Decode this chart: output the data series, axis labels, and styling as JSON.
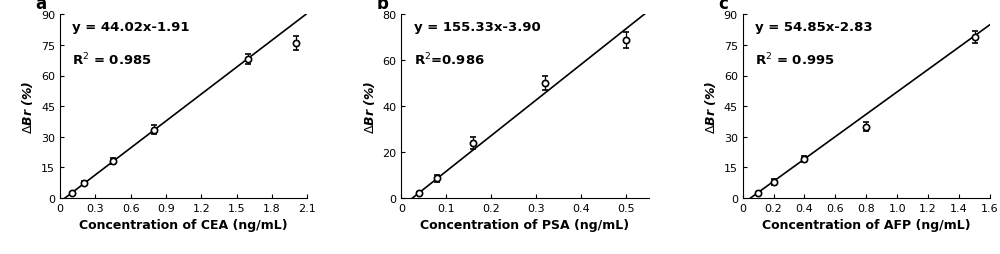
{
  "panels": [
    {
      "label": "a",
      "equation": "y = 44.02x-1.91",
      "r2": "R$^2$ = 0.985",
      "xlabel": "Concentration of CEA (ng/mL)",
      "ylabel": "$\\Delta$Br (%)",
      "xlim": [
        0,
        2.1
      ],
      "ylim": [
        0,
        90
      ],
      "xticks": [
        0.0,
        0.3,
        0.6,
        0.9,
        1.2,
        1.5,
        1.8,
        2.1
      ],
      "yticks": [
        0,
        15,
        30,
        45,
        60,
        75,
        90
      ],
      "xticklabels": [
        "0",
        "0.3",
        "0.6",
        "0.9",
        "1.2",
        "1.5",
        "1.8",
        "2.1"
      ],
      "yticklabels": [
        "0",
        "15",
        "30",
        "45",
        "60",
        "75",
        "90"
      ],
      "x_data": [
        0.1,
        0.2,
        0.45,
        0.8,
        1.6,
        2.0
      ],
      "y_data": [
        2.5,
        7.5,
        18.0,
        33.5,
        68.0,
        76.0
      ],
      "y_err": [
        0.5,
        1.0,
        1.5,
        2.0,
        2.5,
        3.5
      ],
      "slope": 44.02,
      "intercept": -1.91,
      "fit_x": [
        0.0,
        2.1
      ]
    },
    {
      "label": "b",
      "equation": "y = 155.33x-3.90",
      "r2": "R$^2$=0.986",
      "xlabel": "Concentration of PSA (ng/mL)",
      "ylabel": "$\\Delta$Br (%)",
      "xlim": [
        0,
        0.55
      ],
      "ylim": [
        0,
        80
      ],
      "xticks": [
        0.0,
        0.1,
        0.2,
        0.3,
        0.4,
        0.5
      ],
      "yticks": [
        0,
        20,
        40,
        60,
        80
      ],
      "xticklabels": [
        "0",
        "0.1",
        "0.2",
        "0.3",
        "0.4",
        "0.5"
      ],
      "yticklabels": [
        "0",
        "20",
        "40",
        "60",
        "80"
      ],
      "x_data": [
        0.04,
        0.08,
        0.16,
        0.32,
        0.5
      ],
      "y_data": [
        2.0,
        8.5,
        24.0,
        50.0,
        69.0
      ],
      "y_err": [
        0.5,
        1.5,
        2.5,
        3.0,
        3.5
      ],
      "slope": 155.33,
      "intercept": -3.9,
      "fit_x": [
        0.0,
        0.55
      ]
    },
    {
      "label": "c",
      "equation": "y = 54.85x-2.83",
      "r2": "R$^2$ = 0.995",
      "xlabel": "Concentration of AFP (ng/mL)",
      "ylabel": "$\\Delta$Br (%)",
      "xlim": [
        0,
        1.6
      ],
      "ylim": [
        0,
        90
      ],
      "xticks": [
        0.0,
        0.2,
        0.4,
        0.6,
        0.8,
        1.0,
        1.2,
        1.4,
        1.6
      ],
      "yticks": [
        0,
        15,
        30,
        45,
        60,
        75,
        90
      ],
      "xticklabels": [
        "0",
        "0.2",
        "0.4",
        "0.6",
        "0.8",
        "1.0",
        "1.2",
        "1.4",
        "1.6"
      ],
      "yticklabels": [
        "0",
        "15",
        "30",
        "45",
        "60",
        "75",
        "90"
      ],
      "x_data": [
        0.1,
        0.2,
        0.4,
        0.8,
        1.5
      ],
      "y_data": [
        2.5,
        8.0,
        19.0,
        35.0,
        79.0
      ],
      "y_err": [
        0.5,
        1.5,
        1.5,
        2.0,
        3.0
      ],
      "slope": 54.85,
      "intercept": -2.83,
      "fit_x": [
        0.0,
        1.6
      ]
    }
  ],
  "marker_style": "o",
  "marker_size": 4.5,
  "marker_color": "white",
  "marker_edgecolor": "black",
  "marker_edgewidth": 1.2,
  "line_color": "black",
  "line_width": 1.2,
  "error_color": "black",
  "error_capsize": 2,
  "error_linewidth": 0.9,
  "xlabel_fontsize": 9,
  "ylabel_fontsize": 9,
  "tick_fontsize": 8,
  "equation_fontsize": 9.5,
  "panel_label_fontsize": 12,
  "background_color": "white"
}
